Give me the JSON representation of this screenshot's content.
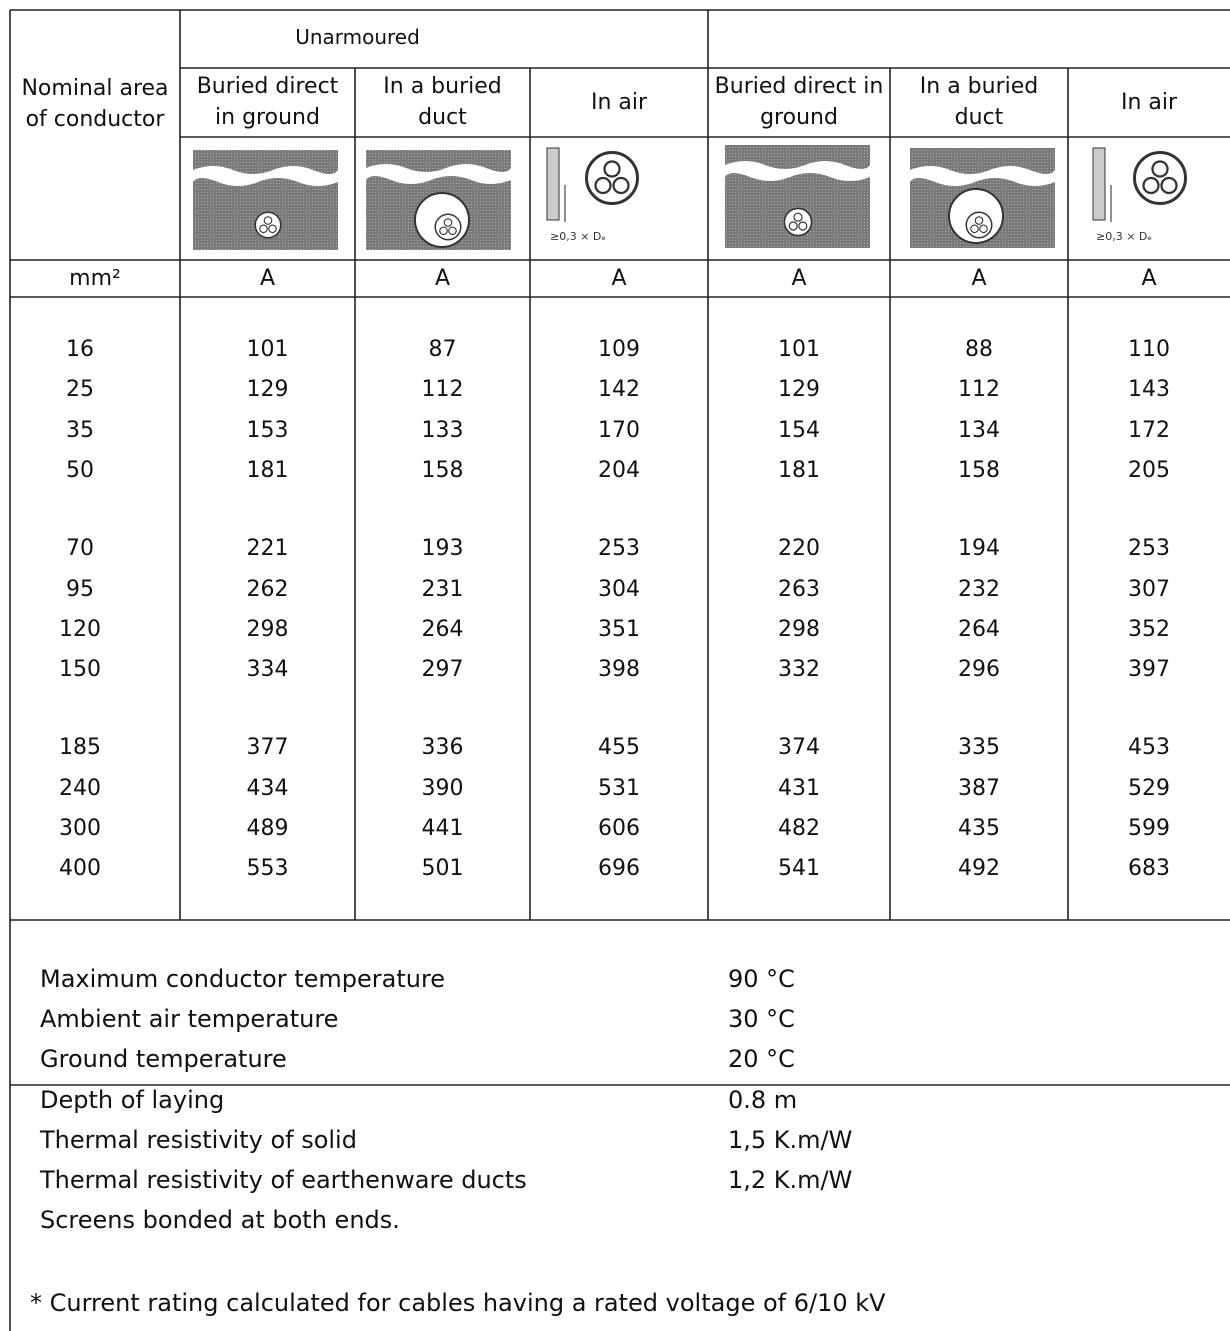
{
  "table": {
    "group_header": "Unarmoured",
    "row_header": "Nominal area of conductor",
    "column_headers": [
      "Buried direct in ground",
      "In a buried duct",
      "In air",
      "Buried direct in ground",
      "In a buried duct",
      "In air"
    ],
    "icon_label": "≥0,3 × Dₑ",
    "units": [
      "mm²",
      "A",
      "A",
      "A",
      "A",
      "A",
      "A"
    ],
    "rows": [
      [
        16,
        101,
        87,
        109,
        101,
        88,
        110
      ],
      [
        25,
        129,
        112,
        142,
        129,
        112,
        143
      ],
      [
        35,
        153,
        133,
        170,
        154,
        134,
        172
      ],
      [
        50,
        181,
        158,
        204,
        181,
        158,
        205
      ],
      [
        70,
        221,
        193,
        253,
        220,
        194,
        253
      ],
      [
        95,
        262,
        231,
        304,
        263,
        232,
        307
      ],
      [
        120,
        298,
        264,
        351,
        298,
        264,
        352
      ],
      [
        150,
        334,
        297,
        398,
        332,
        296,
        397
      ],
      [
        185,
        377,
        336,
        455,
        374,
        335,
        453
      ],
      [
        240,
        434,
        390,
        531,
        431,
        387,
        529
      ],
      [
        300,
        489,
        441,
        606,
        482,
        435,
        599
      ],
      [
        400,
        553,
        501,
        696,
        541,
        492,
        683
      ]
    ]
  },
  "conditions": [
    {
      "label": "Maximum conductor temperature",
      "value": "90 °C"
    },
    {
      "label": "Ambient air temperature",
      "value": "30 °C"
    },
    {
      "label": "Ground temperature",
      "value": "20 °C"
    },
    {
      "label": "Depth of laying",
      "value": "0.8 m"
    },
    {
      "label": "Thermal resistivity of solid",
      "value": "1,5 K.m/W"
    },
    {
      "label": "Thermal resistivity of earthenware ducts",
      "value": "1,2 K.m/W"
    }
  ],
  "note": "Screens bonded at both ends.",
  "footnote": "* Current rating calculated for cables having a rated voltage of 6/10 kV"
}
